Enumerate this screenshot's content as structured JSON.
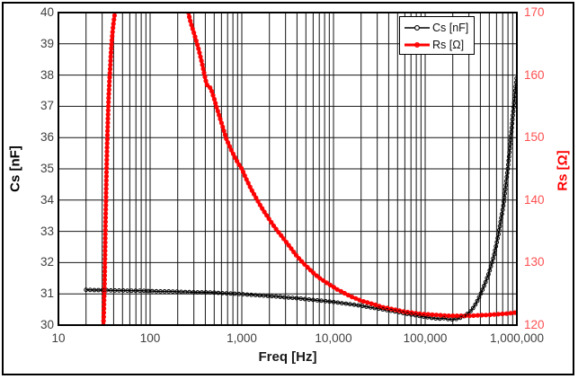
{
  "figure": {
    "background": "#FFFFFF",
    "border_color": "#000000",
    "grid_color": "#141414"
  },
  "chart_data": {
    "type": "line",
    "title": "",
    "xlabel": "Freq [Hz]",
    "x_scale": "log",
    "x_range": [
      10,
      1000000
    ],
    "x_tick_labels": [
      "10",
      "100",
      "1,000",
      "10,000",
      "100,000",
      "1,000,000"
    ],
    "left_axis": {
      "label": "Cs [nF]",
      "range": [
        30,
        40
      ],
      "tick_step": 1,
      "tick_labels": [
        "40",
        "39",
        "38",
        "37",
        "36",
        "35",
        "34",
        "33",
        "32",
        "31",
        "30"
      ],
      "label_color": "#000000",
      "tick_color": "#3f3f3f"
    },
    "right_axis": {
      "label": "Rs [Ω]",
      "range": [
        120,
        170
      ],
      "grid_step": 5,
      "tick_labels": [
        "170",
        "160",
        "150",
        "140",
        "130",
        "120"
      ],
      "label_color": "#FE0000",
      "tick_color": "#FF5052"
    },
    "grid": true,
    "legend": {
      "position": "top-right-inside",
      "entries": [
        {
          "label": "Cs [nF]",
          "color": "#000000",
          "line_width": 1.4
        },
        {
          "label": "Rs [Ω]",
          "color": "#FE0000",
          "line_width": 3
        }
      ]
    },
    "series": [
      {
        "name": "Cs [nF]",
        "axis": "left",
        "color": "#000000",
        "line_width": 1.4,
        "marker": "circle",
        "marker_radius": 1.9,
        "segments": [
          [
            [
              20,
              31.13
            ],
            [
              25,
              31.12
            ],
            [
              32,
              31.12
            ],
            [
              40,
              31.11
            ],
            [
              50,
              31.11
            ],
            [
              63,
              31.1
            ],
            [
              80,
              31.1
            ],
            [
              100,
              31.09
            ],
            [
              125,
              31.08
            ],
            [
              160,
              31.08
            ],
            [
              200,
              31.07
            ],
            [
              250,
              31.06
            ],
            [
              320,
              31.05
            ],
            [
              400,
              31.05
            ],
            [
              500,
              31.04
            ],
            [
              630,
              31.02
            ],
            [
              800,
              31.01
            ],
            [
              1000,
              30.99
            ],
            [
              1250,
              30.97
            ],
            [
              1600,
              30.95
            ],
            [
              2000,
              30.93
            ],
            [
              2500,
              30.91
            ],
            [
              3200,
              30.88
            ],
            [
              4000,
              30.86
            ],
            [
              5000,
              30.83
            ],
            [
              6300,
              30.8
            ],
            [
              8000,
              30.77
            ],
            [
              10000,
              30.74
            ],
            [
              12500,
              30.7
            ],
            [
              16000,
              30.66
            ],
            [
              20000,
              30.62
            ],
            [
              25000,
              30.57
            ],
            [
              32000,
              30.52
            ],
            [
              40000,
              30.47
            ],
            [
              50000,
              30.42
            ],
            [
              63000,
              30.36
            ],
            [
              80000,
              30.31
            ],
            [
              100000,
              30.26
            ],
            [
              125000,
              30.22
            ],
            [
              140000,
              30.2
            ],
            [
              160000,
              30.22
            ],
            [
              180000,
              30.19
            ],
            [
              200000,
              30.18
            ],
            [
              225000,
              30.2
            ],
            [
              250000,
              30.25
            ],
            [
              280000,
              30.33
            ],
            [
              320000,
              30.47
            ],
            [
              360000,
              30.7
            ],
            [
              400000,
              30.97
            ],
            [
              450000,
              31.33
            ],
            [
              500000,
              31.7
            ],
            [
              560000,
              32.2
            ],
            [
              630000,
              32.9
            ],
            [
              710000,
              33.8
            ],
            [
              800000,
              35.05
            ],
            [
              850000,
              35.85
            ],
            [
              900000,
              36.65
            ],
            [
              950000,
              37.35
            ],
            [
              1000000,
              38.0
            ]
          ]
        ]
      },
      {
        "name": "Rs [Ω]",
        "axis": "right",
        "color": "#FE0000",
        "line_width": 3.2,
        "marker": "circle",
        "marker_radius": 2.1,
        "segments": [
          [
            [
              31,
              120
            ],
            [
              31.5,
              124
            ],
            [
              32,
              128
            ],
            [
              32.3,
              132
            ],
            [
              32.6,
              136
            ],
            [
              33,
              140
            ],
            [
              33.3,
              143
            ],
            [
              33.6,
              146
            ],
            [
              34,
              149
            ],
            [
              34.4,
              151.5
            ],
            [
              34.8,
              154
            ],
            [
              35.3,
              156.5
            ],
            [
              36,
              159
            ],
            [
              36.8,
              161.5
            ],
            [
              37.4,
              163.5
            ],
            [
              38.2,
              165.5
            ],
            [
              39,
              167
            ],
            [
              40,
              168.5
            ],
            [
              41,
              169.6
            ],
            [
              41.8,
              170.6
            ]
          ],
          [
            [
              258,
              170.6
            ],
            [
              270,
              169.0
            ],
            [
              285,
              167.8
            ],
            [
              300,
              166.8
            ],
            [
              320,
              165.4
            ],
            [
              340,
              164.0
            ],
            [
              360,
              162.5
            ],
            [
              380,
              161.0
            ],
            [
              400,
              159.4
            ],
            [
              415,
              158.5
            ],
            [
              430,
              158.2
            ],
            [
              450,
              158.0
            ],
            [
              465,
              157.6
            ],
            [
              480,
              157.0
            ],
            [
              500,
              156.2
            ],
            [
              530,
              154.9
            ],
            [
              570,
              153.4
            ],
            [
              620,
              151.7
            ],
            [
              670,
              150.0
            ],
            [
              720,
              148.9
            ],
            [
              780,
              147.8
            ],
            [
              850,
              146.7
            ],
            [
              920,
              145.8
            ],
            [
              1000,
              145.0
            ],
            [
              1100,
              143.6
            ],
            [
              1250,
              141.9
            ],
            [
              1400,
              140.6
            ],
            [
              1600,
              139.1
            ],
            [
              1800,
              137.9
            ],
            [
              2000,
              136.9
            ],
            [
              2200,
              136.0
            ],
            [
              2500,
              134.9
            ],
            [
              2800,
              134.0
            ],
            [
              3200,
              132.9
            ],
            [
              3600,
              131.9
            ],
            [
              4000,
              131.0
            ],
            [
              4500,
              130.2
            ],
            [
              5000,
              129.5
            ],
            [
              5600,
              128.8
            ],
            [
              6300,
              128.1
            ],
            [
              7100,
              127.5
            ],
            [
              8000,
              127.0
            ],
            [
              9000,
              126.5
            ],
            [
              10000,
              126.1
            ],
            [
              11000,
              125.7
            ],
            [
              12500,
              125.3
            ],
            [
              14000,
              124.9
            ],
            [
              16000,
              124.5
            ],
            [
              18000,
              124.2
            ],
            [
              20000,
              123.9
            ],
            [
              22500,
              123.7
            ],
            [
              25000,
              123.5
            ],
            [
              28000,
              123.3
            ],
            [
              32000,
              123.0
            ],
            [
              36000,
              122.8
            ],
            [
              40000,
              122.7
            ],
            [
              45000,
              122.5
            ],
            [
              50000,
              122.4
            ],
            [
              56000,
              122.2
            ],
            [
              63000,
              122.1
            ],
            [
              71000,
              122.0
            ],
            [
              80000,
              121.9
            ],
            [
              90000,
              121.8
            ],
            [
              100000,
              121.75
            ],
            [
              112000,
              121.7
            ],
            [
              125000,
              121.65
            ],
            [
              140000,
              121.6
            ],
            [
              160000,
              121.55
            ],
            [
              180000,
              121.5
            ],
            [
              200000,
              121.5
            ],
            [
              225000,
              121.5
            ],
            [
              250000,
              121.5
            ],
            [
              280000,
              121.5
            ],
            [
              320000,
              121.5
            ],
            [
              360000,
              121.55
            ],
            [
              400000,
              121.6
            ],
            [
              450000,
              121.6
            ],
            [
              500000,
              121.65
            ],
            [
              560000,
              121.7
            ],
            [
              630000,
              121.75
            ],
            [
              710000,
              121.8
            ],
            [
              800000,
              121.85
            ],
            [
              900000,
              121.95
            ],
            [
              1000000,
              122.05
            ]
          ]
        ]
      }
    ]
  }
}
